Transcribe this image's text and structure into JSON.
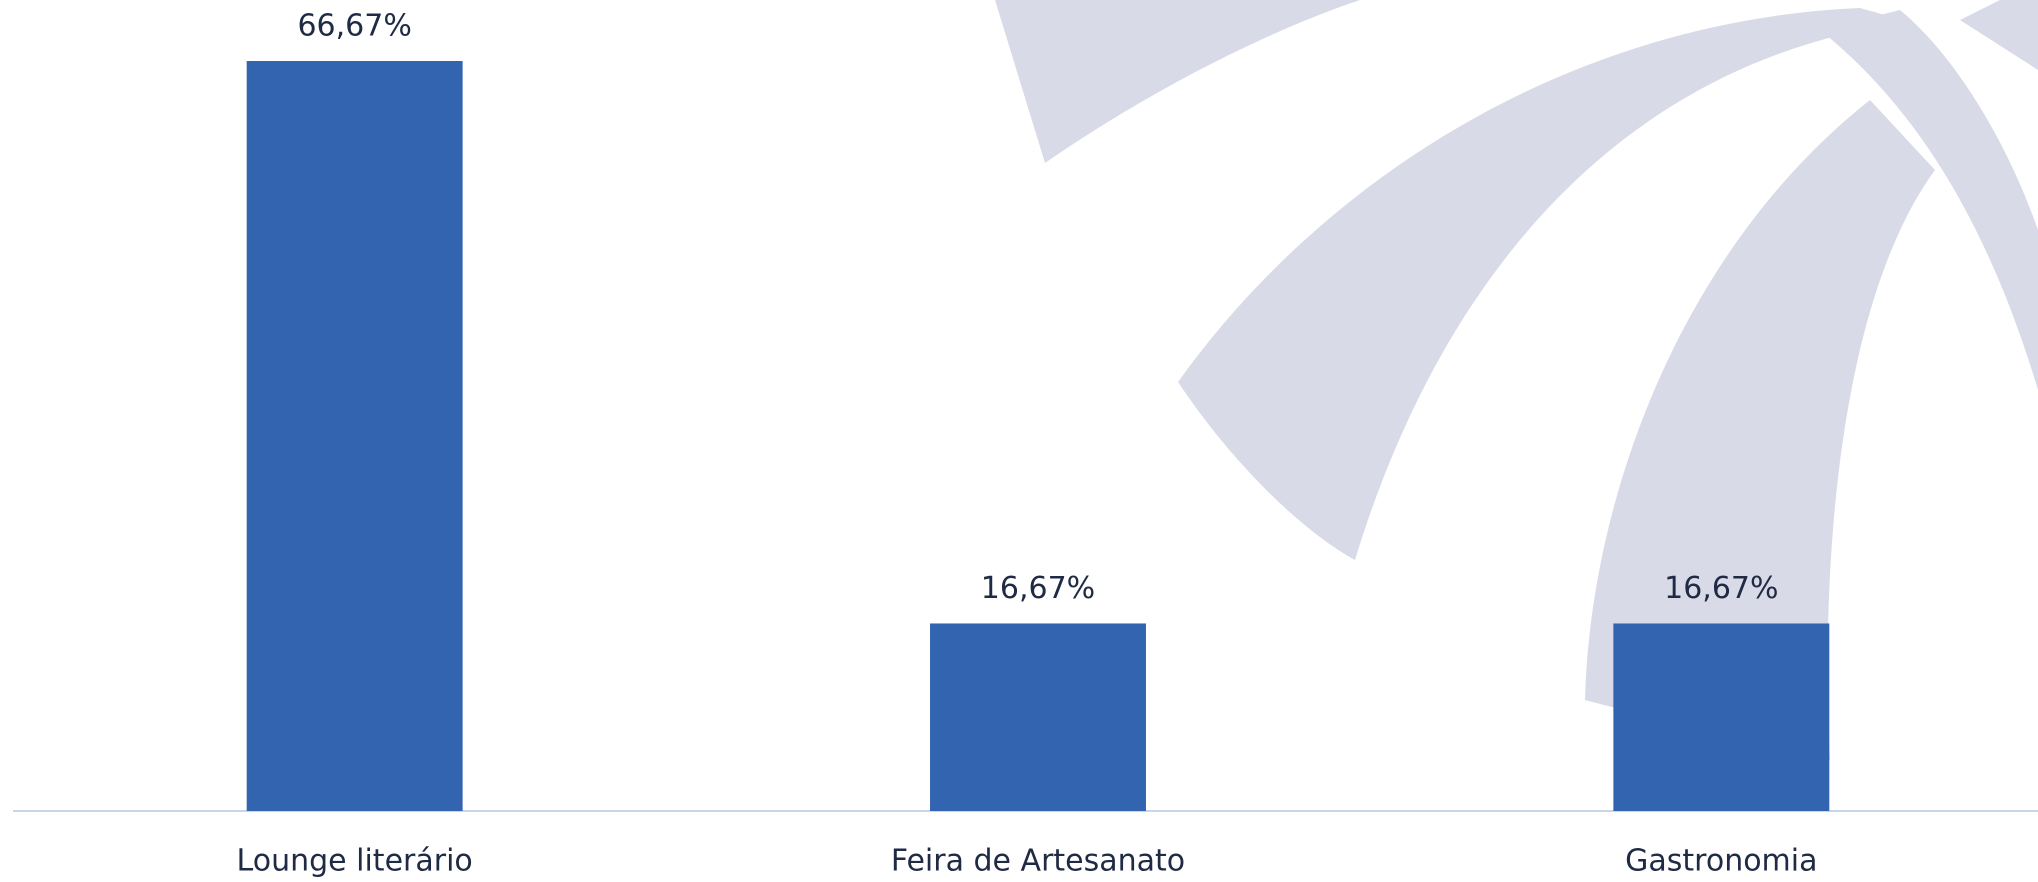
{
  "chart_data": {
    "type": "bar",
    "categories": [
      "Lounge literário",
      "Feira de Artesanato",
      "Gastronomia"
    ],
    "values": [
      66.67,
      16.67,
      16.67
    ],
    "value_labels": [
      "66,67%",
      "16,67%",
      "16,67%"
    ],
    "color": "#3364b0"
  }
}
